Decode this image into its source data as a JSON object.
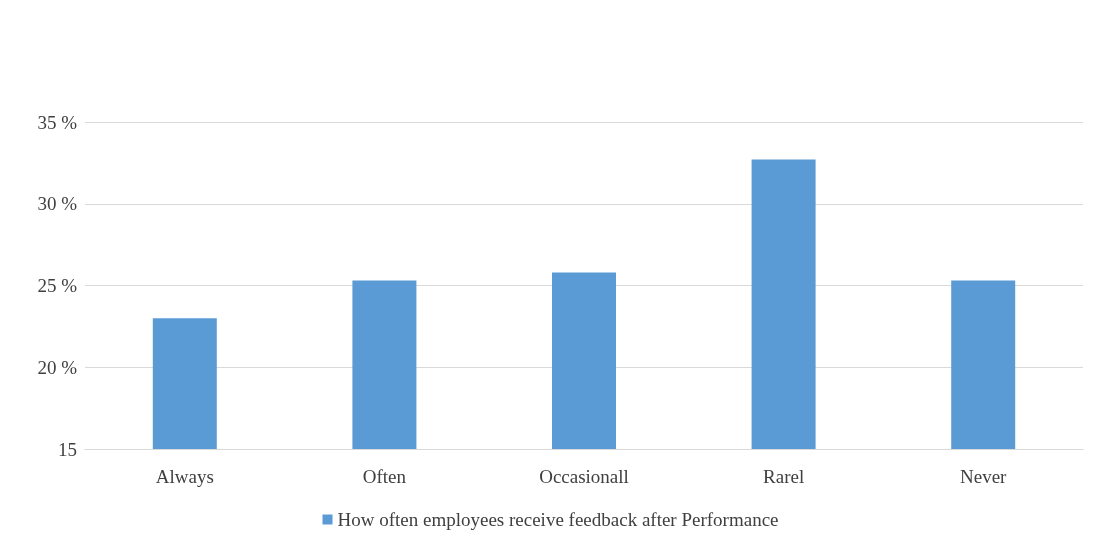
{
  "chart_data": {
    "type": "bar",
    "categories": [
      "Always",
      "Often",
      "Occasionall",
      "Rarel",
      "Never"
    ],
    "series": [
      {
        "name": "How often employees receive feedback after Performance",
        "color": "#5b9bd5",
        "values": [
          23,
          25.3,
          25.8,
          32.7,
          25.3
        ]
      }
    ],
    "ylim": [
      15,
      35
    ],
    "yticks": [
      15,
      {
        "value": 20,
        "label": "20 %"
      },
      {
        "value": 25,
        "label": "25 %"
      },
      {
        "value": 30,
        "label": "30 %"
      },
      {
        "value": 35,
        "label": "35 %"
      }
    ],
    "grid": true,
    "legend": "bottom"
  }
}
